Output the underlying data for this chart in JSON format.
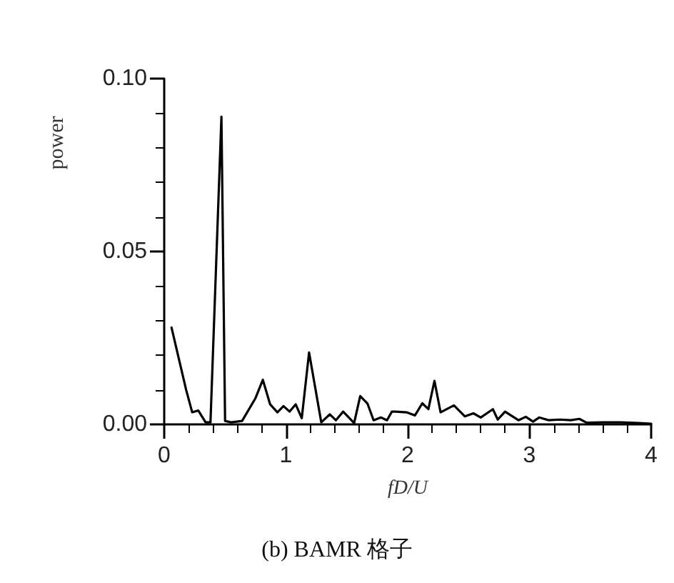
{
  "chart_data": {
    "type": "line",
    "title": "(b) BAMR 格子",
    "xlabel": "fD/U",
    "ylabel": "power",
    "xlim": [
      0,
      4
    ],
    "xticks": [
      0,
      1,
      2,
      3,
      4
    ],
    "ylim": [
      0,
      0.1
    ],
    "yticks": [
      {
        "value": 0,
        "label": "0.00"
      },
      {
        "value": 0.05,
        "label": "0.05"
      },
      {
        "value": 0.1,
        "label": "0.10"
      }
    ],
    "marker": "none",
    "line_style": "solid",
    "series": [
      {
        "color": "#000000",
        "x": [
          0.06,
          0.18,
          0.23,
          0.28,
          0.34,
          0.38,
          0.47,
          0.5,
          0.55,
          0.64,
          0.75,
          0.81,
          0.87,
          0.93,
          0.98,
          1.03,
          1.08,
          1.13,
          1.19,
          1.29,
          1.36,
          1.41,
          1.47,
          1.56,
          1.61,
          1.67,
          1.72,
          1.78,
          1.83,
          1.87,
          1.9,
          1.99,
          2.06,
          2.12,
          2.17,
          2.22,
          2.27,
          2.38,
          2.47,
          2.54,
          2.6,
          2.7,
          2.74,
          2.8,
          2.91,
          2.97,
          3.03,
          3.08,
          3.16,
          3.25,
          3.34,
          3.41,
          3.47,
          3.6,
          3.75,
          3.9,
          4.0
        ],
        "values": [
          0.028,
          0.01,
          0.0035,
          0.004,
          0.0006,
          0.0006,
          0.089,
          0.001,
          0.0006,
          0.001,
          0.0076,
          0.0129,
          0.0058,
          0.0035,
          0.0053,
          0.0037,
          0.0058,
          0.0018,
          0.0208,
          0.0006,
          0.0029,
          0.0012,
          0.0037,
          0.0004,
          0.0082,
          0.006,
          0.0012,
          0.002,
          0.0012,
          0.0037,
          0.0037,
          0.0035,
          0.0026,
          0.0061,
          0.0044,
          0.0126,
          0.0035,
          0.0055,
          0.0023,
          0.0032,
          0.002,
          0.0044,
          0.0014,
          0.0037,
          0.0012,
          0.0022,
          0.0008,
          0.002,
          0.0012,
          0.0014,
          0.0012,
          0.0016,
          0.0005,
          0.0006,
          0.0006,
          0.0004,
          0.0002
        ]
      }
    ]
  }
}
